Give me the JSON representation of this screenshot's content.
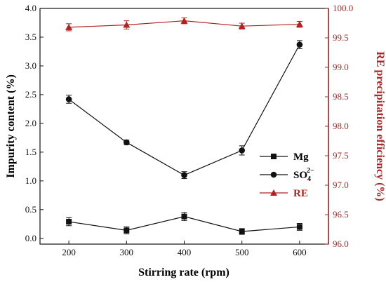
{
  "chart_data": {
    "type": "line",
    "x": [
      200,
      300,
      400,
      500,
      600
    ],
    "xlabel": "Stirring rate (rpm)",
    "ylabel_left": "Impurity content (%)",
    "ylabel_right": "RE precipitation efficiency (%)",
    "xlim": [
      150,
      650
    ],
    "ylim_left": [
      -0.1,
      4.0
    ],
    "ylim_right": [
      96.0,
      100.0
    ],
    "x_ticks": [
      "200",
      "300",
      "400",
      "500",
      "600"
    ],
    "y_left_ticks": [
      "0.0",
      "0.5",
      "1.0",
      "1.5",
      "2.0",
      "2.5",
      "3.0",
      "3.5",
      "4.0"
    ],
    "y_right_ticks": [
      "96.0",
      "96.5",
      "97.0",
      "97.5",
      "98.0",
      "98.5",
      "99.0",
      "99.5",
      "100.0"
    ],
    "grid": false,
    "legend_position": "center-right",
    "series": [
      {
        "name": "Mg",
        "axis": "left",
        "marker": "square",
        "color": "#111111",
        "values": [
          0.29,
          0.14,
          0.38,
          0.12,
          0.2
        ],
        "errors": [
          0.07,
          0.06,
          0.07,
          0.05,
          0.06
        ]
      },
      {
        "name": "SO",
        "name_sub": "4",
        "name_sup": "2−",
        "axis": "left",
        "marker": "circle",
        "color": "#111111",
        "values": [
          2.42,
          1.67,
          1.1,
          1.53,
          3.37
        ],
        "errors": [
          0.07,
          0.04,
          0.06,
          0.08,
          0.07
        ]
      },
      {
        "name": "RE",
        "axis": "right",
        "marker": "triangle",
        "color": "#b22222",
        "values": [
          99.68,
          99.72,
          99.79,
          99.7,
          99.73
        ],
        "errors": [
          0.06,
          0.07,
          0.05,
          0.05,
          0.05
        ]
      }
    ]
  },
  "colors": {
    "axis_left": "#111111",
    "axis_right": "#a52a2a",
    "re_series": "#b22222"
  }
}
